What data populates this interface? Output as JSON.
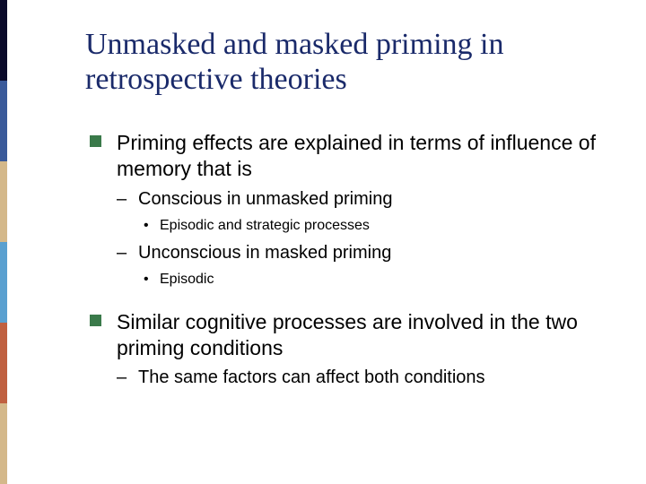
{
  "slide": {
    "title": "Unmasked and masked priming in retrospective theories",
    "title_color": "#1a2a6a",
    "title_font": "Times New Roman",
    "title_fontsize": 34,
    "body_font": "Arial",
    "body_color": "#000000",
    "bullet_square_color": "#3a7a4a",
    "background_color": "#ffffff",
    "left_bar_colors": [
      "#0a0a2a",
      "#3a5a9a",
      "#d4b88a",
      "#5aa0d0",
      "#c06040",
      "#d4b88a"
    ],
    "bullets": [
      {
        "level": 1,
        "text": "Priming effects are explained in terms of influence of memory that is",
        "children": [
          {
            "level": 2,
            "text": "Conscious in unmasked priming",
            "children": [
              {
                "level": 3,
                "text": "Episodic and strategic processes"
              }
            ]
          },
          {
            "level": 2,
            "text": "Unconscious in masked priming",
            "children": [
              {
                "level": 3,
                "text": "Episodic"
              }
            ]
          }
        ]
      },
      {
        "level": 1,
        "text": "Similar cognitive processes are involved in the two priming conditions",
        "children": [
          {
            "level": 2,
            "text": "The same factors can affect both conditions"
          }
        ]
      }
    ],
    "font_sizes": {
      "l1": 23,
      "l2": 20,
      "l3": 16
    }
  }
}
